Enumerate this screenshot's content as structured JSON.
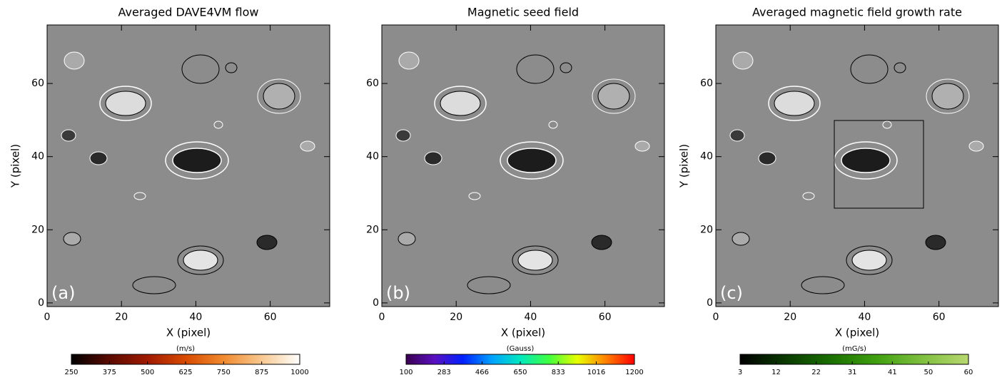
{
  "chart_data": [
    {
      "type": "image",
      "title": "Averaged DAVE4VM flow",
      "xlabel": "X (pixel)",
      "ylabel": "Y (pixel)",
      "panel_label": "(a)",
      "xlim": [
        0,
        76
      ],
      "ylim": [
        -1,
        76
      ],
      "xticks": [
        0,
        20,
        40,
        60
      ],
      "yticks": [
        0,
        20,
        40,
        60
      ],
      "colorbar": {
        "label": "(m/s)",
        "lim": [
          250,
          1000
        ],
        "ticks": [
          250,
          375,
          500,
          625,
          750,
          875,
          1000
        ],
        "colors": [
          "#000000",
          "#5a0a00",
          "#a01a00",
          "#d84a00",
          "#f08a30",
          "#f8c890",
          "#ffffff"
        ]
      }
    },
    {
      "type": "image",
      "title": "Magnetic seed field",
      "xlabel": "X (pixel)",
      "panel_label": "(b)",
      "xlim": [
        0,
        76
      ],
      "ylim": [
        -1,
        76
      ],
      "xticks": [
        0,
        20,
        40,
        60
      ],
      "yticks": [
        0,
        20,
        40,
        60
      ],
      "colorbar": {
        "label": "(Gauss)",
        "lim": [
          100,
          1200
        ],
        "ticks": [
          100,
          283,
          466,
          650,
          833,
          1016,
          1200
        ],
        "colors": [
          "#3a0050",
          "#5a10c0",
          "#0020ff",
          "#00a0ff",
          "#00e8c0",
          "#40ff40",
          "#e8ff00",
          "#ff8000",
          "#ff0000"
        ]
      }
    },
    {
      "type": "image",
      "title": "Averaged magnetic field growth rate",
      "xlabel": "X (pixel)",
      "ylabel": "Y (pixel)",
      "panel_label": "(c)",
      "xlim": [
        0,
        76
      ],
      "ylim": [
        -1,
        76
      ],
      "xticks": [
        0,
        20,
        40,
        60
      ],
      "yticks": [
        0,
        20,
        40,
        60
      ],
      "colorbar": {
        "label": "(mG/s)",
        "lim": [
          3,
          60
        ],
        "ticks": [
          3,
          12,
          22,
          31,
          41,
          50,
          60
        ],
        "colors": [
          "#000000",
          "#0a3a00",
          "#1a7000",
          "#40a010",
          "#80c040",
          "#b8d870"
        ]
      }
    }
  ]
}
